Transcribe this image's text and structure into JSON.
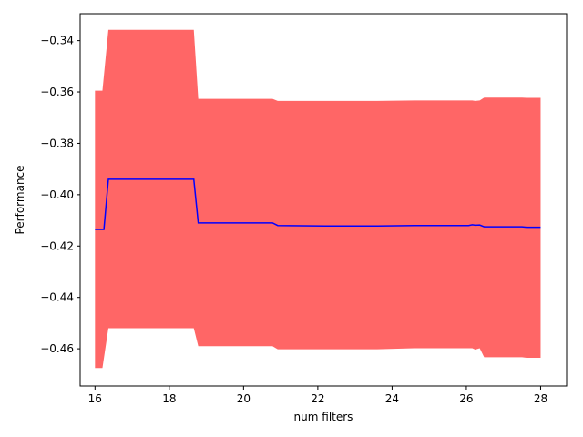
{
  "chart_data": {
    "type": "line",
    "title": "",
    "xlabel": "num filters",
    "ylabel": "Performance",
    "xlim": [
      15.6,
      28.7
    ],
    "ylim": [
      -0.4745,
      -0.3295
    ],
    "grid": false,
    "legend": null,
    "x_ticks": [
      16,
      18,
      20,
      22,
      24,
      26,
      28
    ],
    "x_tick_labels": [
      "16",
      "18",
      "20",
      "22",
      "24",
      "26",
      "28"
    ],
    "y_ticks": [
      -0.46,
      -0.44,
      -0.42,
      -0.4,
      -0.38,
      -0.36,
      -0.34
    ],
    "y_tick_labels": [
      "−0.46",
      "−0.44",
      "−0.42",
      "−0.40",
      "−0.38",
      "−0.36",
      "−0.34"
    ],
    "colors": {
      "mean_line": "#0000ff",
      "band": "#ff6666"
    },
    "series": [
      {
        "kind": "mean",
        "x": [
          16.0,
          16.24,
          16.36,
          18.66,
          18.78,
          20.78,
          20.92,
          22.2,
          23.6,
          24.6,
          26.06,
          26.16,
          26.24,
          26.36,
          26.48,
          26.62,
          27.5,
          27.62,
          28.0
        ],
        "y": [
          -0.4135,
          -0.4135,
          -0.394,
          -0.394,
          -0.411,
          -0.411,
          -0.412,
          -0.4122,
          -0.4122,
          -0.412,
          -0.412,
          -0.4117,
          -0.4119,
          -0.4118,
          -0.4125,
          -0.4125,
          -0.4125,
          -0.4127,
          -0.4127
        ]
      },
      {
        "kind": "band",
        "x": [
          16.0,
          16.2,
          16.36,
          18.66,
          18.78,
          20.78,
          20.92,
          22.2,
          23.6,
          24.6,
          26.06,
          26.16,
          26.24,
          26.36,
          26.48,
          26.62,
          27.5,
          27.62,
          28.0
        ],
        "upper": [
          -0.3595,
          -0.3595,
          -0.3358,
          -0.3358,
          -0.3627,
          -0.3627,
          -0.3635,
          -0.3635,
          -0.3635,
          -0.3633,
          -0.3633,
          -0.3633,
          -0.3635,
          -0.3633,
          -0.3622,
          -0.3622,
          -0.3622,
          -0.3623,
          -0.3623
        ],
        "lower": [
          -0.4675,
          -0.4675,
          -0.452,
          -0.452,
          -0.459,
          -0.459,
          -0.4602,
          -0.4602,
          -0.4602,
          -0.4598,
          -0.4598,
          -0.4598,
          -0.4603,
          -0.4598,
          -0.4633,
          -0.4633,
          -0.4633,
          -0.4635,
          -0.4635
        ]
      }
    ]
  }
}
